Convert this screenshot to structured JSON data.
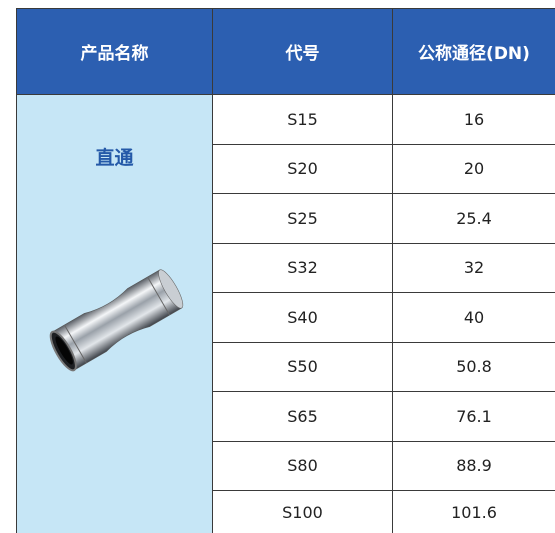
{
  "header": {
    "columns": [
      "产品名称",
      "代号",
      "公称通径(DN)"
    ]
  },
  "product": {
    "name": "直通"
  },
  "table": {
    "rows": [
      [
        "S15",
        "16"
      ],
      [
        "S20",
        "20"
      ],
      [
        "S25",
        "25.4"
      ],
      [
        "S32",
        "32"
      ],
      [
        "S40",
        "40"
      ],
      [
        "S50",
        "50.8"
      ],
      [
        "S65",
        "76.1"
      ],
      [
        "S80",
        "88.9"
      ],
      [
        "S100",
        "101.6"
      ]
    ]
  }
}
